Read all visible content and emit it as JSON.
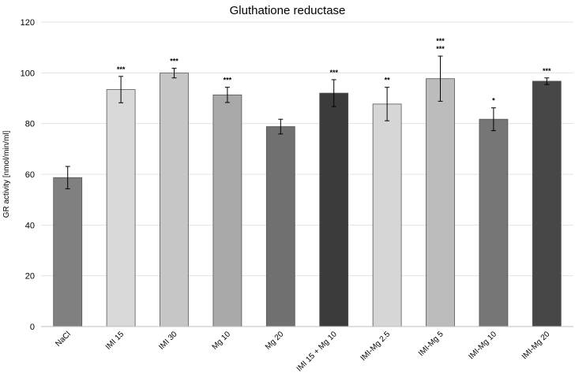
{
  "chart_data": {
    "type": "bar",
    "title": "Gluthatione reductase",
    "xlabel": "",
    "ylabel": "GR activity [nmol/min/ml]",
    "ylim": [
      0,
      120
    ],
    "yticks": [
      0,
      20,
      40,
      60,
      80,
      100,
      120
    ],
    "grid": true,
    "categories": [
      "NaCl",
      "IMI 15",
      "IMI 30",
      "Mg 10",
      "Mg 20",
      "IMI 15 + Mg 10",
      "IMI-Mg 2.5",
      "IMI-Mg 5",
      "IMI-Mg 10",
      "IMI-Mg 20"
    ],
    "values": [
      58.7,
      93.4,
      99.9,
      91.3,
      78.8,
      92.0,
      87.7,
      97.7,
      81.7,
      96.7
    ],
    "errors": [
      4.4,
      5.2,
      1.9,
      3.0,
      2.9,
      5.3,
      6.6,
      8.9,
      4.5,
      1.3
    ],
    "significance": [
      "",
      "***",
      "***",
      "***",
      "",
      "***",
      "**",
      "***\n***",
      "*",
      "***"
    ],
    "colors": [
      "#808080",
      "#d9d9d9",
      "#c6c6c6",
      "#a9a9a9",
      "#707070",
      "#3b3b3b",
      "#d6d6d6",
      "#bcbcbc",
      "#767676",
      "#474747"
    ]
  }
}
